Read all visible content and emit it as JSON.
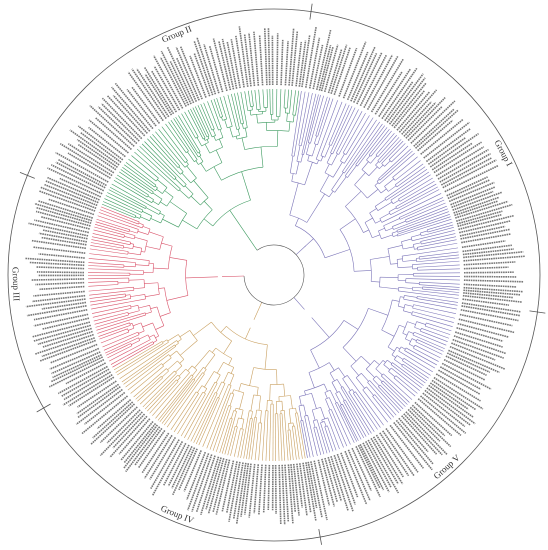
{
  "groups": [
    {
      "label": "Group II"
    },
    {
      "label": "Group I"
    },
    {
      "label": "Group V"
    },
    {
      "label": "Group IV"
    },
    {
      "label": "Group III"
    }
  ]
}
